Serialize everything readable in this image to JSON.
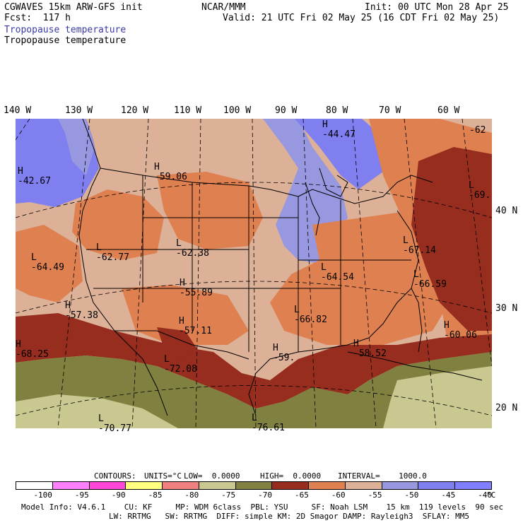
{
  "header": {
    "model": "CGWAVES 15km ARW-GFS init",
    "forecast": "Fcst:  117 h",
    "agency": "NCAR/MMM",
    "init": "Init: 00 UTC Mon 28 Apr 25",
    "valid": "Valid: 21 UTC Fri 02 May 25 (16 CDT Fri 02 May 25)",
    "field_label_1": "Tropopause temperature",
    "field_label_2": "Tropopause temperature"
  },
  "longitudes": [
    "140 W",
    "130 W",
    "120 W",
    "110 W",
    "100 W",
    "90 W",
    "80 W",
    "70 W",
    "60 W"
  ],
  "latitudes": [
    "40 N",
    "30 N",
    "20 N"
  ],
  "extrema": [
    {
      "type": "H",
      "value": "-44.47"
    },
    {
      "type": "L",
      "value": "-62"
    },
    {
      "type": "H",
      "value": "-42.67"
    },
    {
      "type": "H",
      "value": "-59.06"
    },
    {
      "type": "L",
      "value": "-69."
    },
    {
      "type": "L",
      "value": "-62.77"
    },
    {
      "type": "L",
      "value": "-62.38"
    },
    {
      "type": "L",
      "value": "-64.49"
    },
    {
      "type": "L",
      "value": "-67.14"
    },
    {
      "type": "H",
      "value": "-55.89"
    },
    {
      "type": "L",
      "value": "-64.54"
    },
    {
      "type": "L",
      "value": "-66.59"
    },
    {
      "type": "H",
      "value": "-57.38"
    },
    {
      "type": "H",
      "value": "-57.11"
    },
    {
      "type": "L",
      "value": "-66.82"
    },
    {
      "type": "H",
      "value": "-60.06"
    },
    {
      "type": "H",
      "value": "-68.25"
    },
    {
      "type": "L",
      "value": "-72.08"
    },
    {
      "type": "H",
      "value": "-59."
    },
    {
      "type": "H",
      "value": "-58.52"
    },
    {
      "type": "L",
      "value": "-70.77"
    },
    {
      "type": "L",
      "value": "-76.61"
    }
  ],
  "contours": {
    "label": "CONTOURS:",
    "units": "UNITS=°C",
    "low": "LOW=  0.0000",
    "high": "HIGH=  0.0000",
    "interval": "INTERVAL=    1000.0"
  },
  "colorbar": {
    "colors": [
      "#ffffff",
      "#ff80ff",
      "#ff44d8",
      "#ffff80",
      "#f08080",
      "#c8c890",
      "#808040",
      "#962d1e",
      "#df8050",
      "#ddb098",
      "#9898e0",
      "#7f7ff0",
      "#7f7fff"
    ],
    "labels": [
      "-100",
      "-95",
      "-90",
      "-85",
      "-80",
      "-75",
      "-70",
      "-65",
      "-60",
      "-55",
      "-50",
      "-45",
      "-40"
    ],
    "unit": "°C"
  },
  "footer": {
    "line1": "Model Info: V4.6.1    CU: KF     MP: WDM 6class  PBL: YSU     SF: Noah LSM    15 km  119 levels  90 sec",
    "line2": "LW: RRTMG   SW: RRTMG  DIFF: simple KM: 2D Smagor DAMP: Rayleigh3  SFLAY: MM5"
  }
}
